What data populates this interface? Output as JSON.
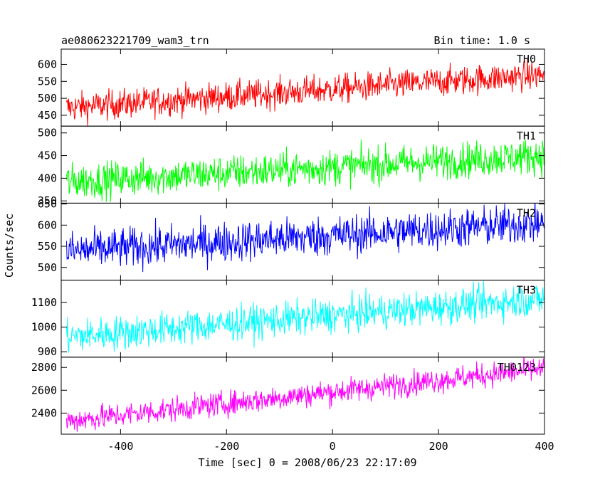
{
  "chart_data": {
    "type": "line",
    "title": "ae080623221709_wam3_trn",
    "subtitle": "Bin time: 1.0 s",
    "xlabel": "Time [sec] 0 = 2008/06/23 22:17:09",
    "ylabel": "Counts/sec",
    "xlim": [
      -512,
      400
    ],
    "xticks": [
      -400,
      -200,
      0,
      200,
      400
    ],
    "panels": [
      {
        "name": "TH0",
        "color": "#ff0000",
        "ylim": [
          418,
          645
        ],
        "yticks": [
          450,
          500,
          550,
          600
        ],
        "trend_start": 472,
        "trend_end": 570,
        "noise_sd": 22
      },
      {
        "name": "TH1",
        "color": "#00ff00",
        "ylim": [
          345,
          515
        ],
        "yticks": [
          350,
          400,
          450,
          500
        ],
        "trend_start": 392,
        "trend_end": 450,
        "noise_sd": 20
      },
      {
        "name": "TH2",
        "color": "#0000ff",
        "ylim": [
          470,
          652
        ],
        "yticks": [
          500,
          550,
          600,
          650
        ],
        "trend_start": 538,
        "trend_end": 605,
        "noise_sd": 24
      },
      {
        "name": "TH3",
        "color": "#00ffff",
        "ylim": [
          878,
          1190
        ],
        "yticks": [
          900,
          1000,
          1100
        ],
        "trend_start": 960,
        "trend_end": 1115,
        "noise_sd": 35
      },
      {
        "name": "TH0123",
        "color": "#ff00ff",
        "ylim": [
          2215,
          2890
        ],
        "yticks": [
          2400,
          2600,
          2800
        ],
        "trend_start": 2330,
        "trend_end": 2790,
        "noise_sd": 55
      }
    ]
  }
}
